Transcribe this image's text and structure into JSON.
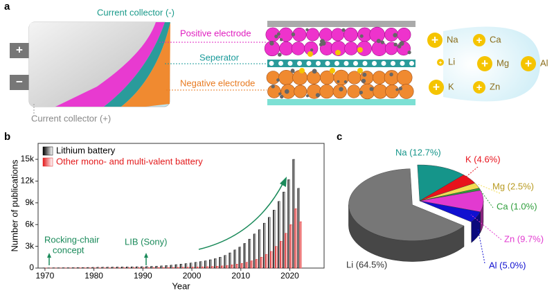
{
  "panels": [
    "a",
    "b",
    "c"
  ],
  "diagram": {
    "current_collector_neg": "Current collector (-)",
    "current_collector_pos": "Current collector (+)",
    "positive_electrode": "Positive electrode",
    "separator": "Seperator",
    "negative_electrode": "Negative electrode",
    "tab_plus": "+",
    "tab_minus": "−",
    "ions": [
      "Na",
      "Li",
      "K",
      "Ca",
      "Mg",
      "Zn",
      "Al"
    ]
  },
  "chart_data": [
    {
      "type": "bar",
      "x_label": "Year",
      "y_label": "Number of publications",
      "x": [
        1970,
        1971,
        1972,
        1973,
        1974,
        1975,
        1976,
        1977,
        1978,
        1979,
        1980,
        1981,
        1982,
        1983,
        1984,
        1985,
        1986,
        1987,
        1988,
        1989,
        1990,
        1991,
        1992,
        1993,
        1994,
        1995,
        1996,
        1997,
        1998,
        1999,
        2000,
        2001,
        2002,
        2003,
        2004,
        2005,
        2006,
        2007,
        2008,
        2009,
        2010,
        2011,
        2012,
        2013,
        2014,
        2015,
        2016,
        2017,
        2018,
        2019,
        2020,
        2021,
        2022
      ],
      "series": [
        {
          "name": "Lithium battery",
          "color": "#000000",
          "values": [
            30,
            30,
            40,
            40,
            50,
            50,
            60,
            70,
            80,
            90,
            100,
            110,
            120,
            130,
            140,
            150,
            160,
            170,
            180,
            190,
            200,
            220,
            240,
            270,
            300,
            350,
            400,
            480,
            550,
            620,
            700,
            800,
            900,
            1000,
            1150,
            1300,
            1500,
            1750,
            2100,
            2500,
            2900,
            3400,
            4000,
            4700,
            5300,
            6200,
            7000,
            8000,
            9200,
            10500,
            12200,
            15000,
            11000
          ]
        },
        {
          "name": "Other mono- and multi-valent battery",
          "color": "#e31a1c",
          "values": [
            10,
            10,
            10,
            10,
            15,
            15,
            15,
            20,
            20,
            20,
            25,
            25,
            30,
            30,
            35,
            35,
            40,
            40,
            45,
            45,
            50,
            55,
            60,
            65,
            70,
            80,
            90,
            100,
            110,
            120,
            140,
            160,
            180,
            200,
            230,
            260,
            300,
            350,
            450,
            550,
            650,
            800,
            1000,
            1200,
            1500,
            1900,
            2300,
            3000,
            3700,
            4800,
            6000,
            8200,
            6400
          ]
        }
      ],
      "xlim": [
        1968.6,
        2027
      ],
      "ylim": [
        0,
        17200
      ],
      "xticks": [
        1970,
        1980,
        1990,
        2000,
        2010,
        2020
      ],
      "yticks": [
        0,
        {
          "value": 3000,
          "label": "3k"
        },
        {
          "value": 6000,
          "label": "6k"
        },
        {
          "value": 9000,
          "label": "9k"
        },
        {
          "value": 12000,
          "label": "12k"
        },
        {
          "value": 15000,
          "label": "15k"
        }
      ],
      "annotations": [
        "Rocking-chair",
        "concept",
        "LIB (Sony)"
      ],
      "legend": "upper-left"
    },
    {
      "type": "pie",
      "values": [
        12.7,
        4.6,
        2.5,
        1.0,
        9.7,
        5.0,
        64.5
      ],
      "value_labels": [
        "Na (12.7%)",
        "K (4.6%)",
        "Mg (2.5%)",
        "Ca (1.0%)",
        "Zn (9.7%)",
        "Al (5.0%)",
        "Li (64.5%)"
      ],
      "colors": [
        "#15958a",
        "#e8121c",
        "#f2dc52",
        "#2f9e3c",
        "#e23ad0",
        "#1010d0",
        "#777777"
      ],
      "exploded": [
        false,
        false,
        false,
        false,
        false,
        false,
        true
      ]
    }
  ]
}
